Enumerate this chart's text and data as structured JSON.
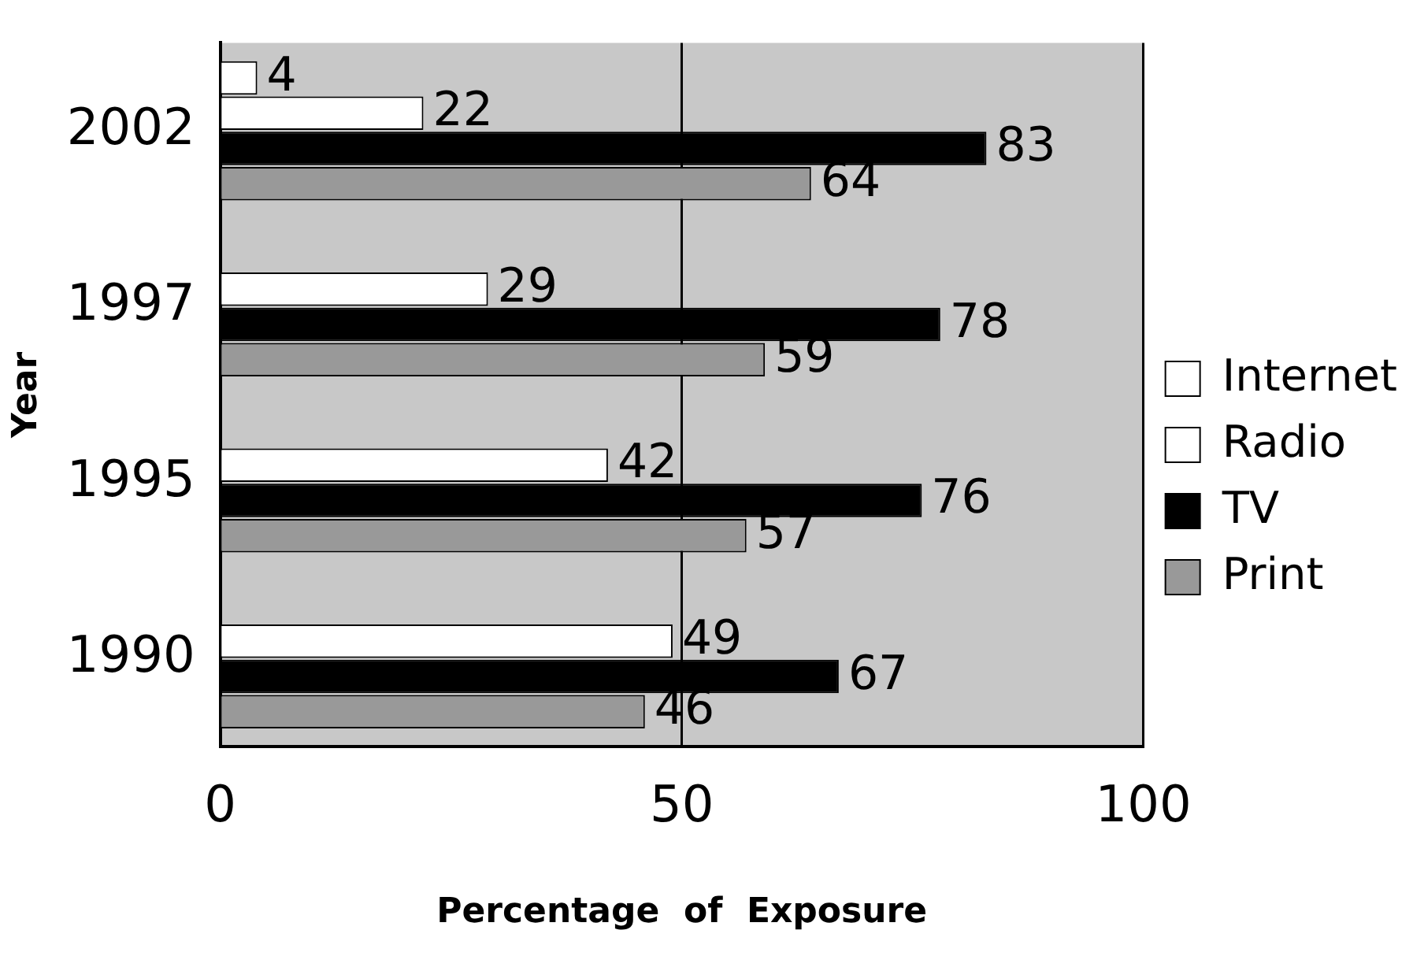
{
  "chart_data": {
    "type": "bar",
    "orientation": "horizontal",
    "xlabel": "Percentage  of  Exposure",
    "ylabel": "Year",
    "categories": [
      "2002",
      "1997",
      "1995",
      "1990"
    ],
    "series": [
      {
        "name": "Internet",
        "color": "#ffffff",
        "values": [
          4,
          null,
          null,
          null
        ]
      },
      {
        "name": "Radio",
        "color": "#ffffff",
        "values": [
          22,
          29,
          42,
          49
        ]
      },
      {
        "name": "TV",
        "color": "#000000",
        "values": [
          83,
          78,
          76,
          67
        ]
      },
      {
        "name": "Print",
        "color": "#999999",
        "values": [
          64,
          59,
          57,
          46
        ]
      }
    ],
    "xlim": [
      0,
      100
    ],
    "xticks": [
      0,
      50,
      100
    ],
    "grid": "x",
    "legend": "right",
    "data_labels": true
  }
}
